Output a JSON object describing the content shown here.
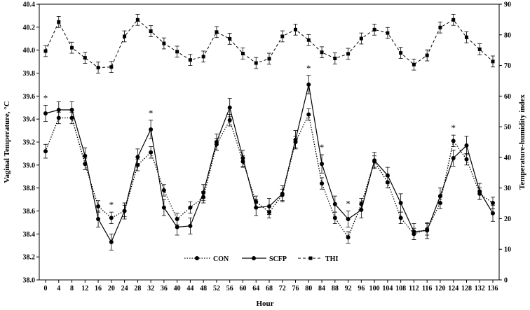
{
  "chart_data": {
    "type": "line",
    "xlabel": "Hour",
    "ylabel": "Vaginal Temperature, °C",
    "y2label": "Temperature-humidity index",
    "x": [
      0,
      4,
      8,
      12,
      16,
      20,
      24,
      28,
      32,
      36,
      40,
      44,
      48,
      52,
      56,
      60,
      64,
      68,
      72,
      76,
      80,
      84,
      88,
      92,
      96,
      100,
      104,
      108,
      112,
      116,
      120,
      124,
      128,
      132,
      136
    ],
    "ylim": [
      38.0,
      40.4
    ],
    "y2lim": [
      0,
      90
    ],
    "yticks": [
      "38.0",
      "38.2",
      "38.4",
      "38.6",
      "38.8",
      "39.0",
      "39.2",
      "39.4",
      "39.6",
      "39.8",
      "40.0",
      "40.2",
      "40.4"
    ],
    "y2ticks": [
      "0",
      "10",
      "20",
      "30",
      "40",
      "50",
      "60",
      "70",
      "80",
      "90"
    ],
    "xticks": [
      "0",
      "4",
      "8",
      "12",
      "16",
      "20",
      "24",
      "28",
      "32",
      "36",
      "40",
      "44",
      "48",
      "52",
      "56",
      "60",
      "64",
      "68",
      "72",
      "76",
      "80",
      "84",
      "88",
      "92",
      "96",
      "100",
      "104",
      "108",
      "112",
      "116",
      "120",
      "124",
      "128",
      "132",
      "136"
    ],
    "legend_position": "bottom-center",
    "grid": false,
    "series": [
      {
        "name": "CON",
        "axis": "left",
        "values": [
          39.12,
          39.41,
          39.41,
          39.01,
          38.64,
          38.54,
          38.6,
          39.0,
          39.11,
          38.78,
          38.53,
          38.63,
          38.72,
          39.18,
          39.39,
          39.03,
          38.68,
          38.59,
          38.74,
          39.2,
          39.44,
          38.84,
          38.54,
          38.37,
          38.66,
          39.03,
          38.85,
          38.54,
          38.4,
          38.44,
          38.67,
          39.21,
          39.05,
          38.75,
          38.67
        ],
        "errors": [
          0.06,
          0.05,
          0.05,
          0.05,
          0.05,
          0.05,
          0.05,
          0.05,
          0.05,
          0.05,
          0.05,
          0.05,
          0.05,
          0.05,
          0.05,
          0.05,
          0.05,
          0.05,
          0.05,
          0.05,
          0.05,
          0.05,
          0.05,
          0.05,
          0.05,
          0.05,
          0.05,
          0.05,
          0.05,
          0.05,
          0.05,
          0.05,
          0.05,
          0.05,
          0.05
        ]
      },
      {
        "name": "SCFP",
        "axis": "left",
        "values": [
          39.45,
          39.48,
          39.48,
          39.08,
          38.53,
          38.33,
          38.6,
          39.07,
          39.31,
          38.63,
          38.46,
          38.47,
          38.76,
          39.2,
          39.5,
          39.06,
          38.63,
          38.64,
          38.75,
          39.22,
          39.7,
          39.01,
          38.66,
          38.53,
          38.61,
          39.04,
          38.91,
          38.67,
          38.42,
          38.43,
          38.73,
          39.06,
          39.17,
          38.77,
          38.58
        ],
        "errors": [
          0.07,
          0.07,
          0.07,
          0.07,
          0.07,
          0.07,
          0.07,
          0.07,
          0.08,
          0.07,
          0.07,
          0.07,
          0.07,
          0.07,
          0.08,
          0.07,
          0.07,
          0.07,
          0.07,
          0.08,
          0.08,
          0.08,
          0.07,
          0.07,
          0.07,
          0.07,
          0.07,
          0.08,
          0.07,
          0.07,
          0.07,
          0.07,
          0.08,
          0.07,
          0.07
        ]
      },
      {
        "name": "THI",
        "axis": "right",
        "values": [
          74.7,
          84.2,
          75.8,
          72.5,
          69.3,
          69.5,
          79.5,
          84.9,
          81.2,
          77.2,
          74.5,
          71.8,
          72.9,
          80.9,
          78.7,
          73.9,
          70.8,
          72.2,
          79.5,
          81.7,
          78.3,
          74.3,
          72.3,
          73.8,
          78.8,
          81.7,
          80.6,
          74.1,
          70.3,
          73.3,
          82.4,
          84.9,
          79.2,
          75.3,
          71.3
        ],
        "errors": [
          1.8,
          1.8,
          1.8,
          1.8,
          1.8,
          1.8,
          1.8,
          1.8,
          1.8,
          1.8,
          1.8,
          1.8,
          1.8,
          1.8,
          1.8,
          1.8,
          1.8,
          1.8,
          1.8,
          1.8,
          1.8,
          1.8,
          1.8,
          1.8,
          1.8,
          1.8,
          1.8,
          1.8,
          1.8,
          1.8,
          1.8,
          1.8,
          1.8,
          1.8,
          1.8
        ]
      }
    ],
    "significance_marker": "*",
    "significance_hours": [
      0,
      20,
      32,
      80,
      84,
      92,
      124
    ]
  }
}
